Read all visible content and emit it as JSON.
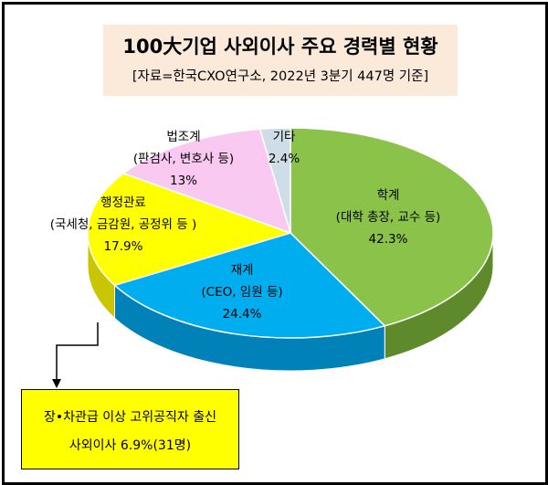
{
  "title": "100大기업 사외이사 주요 경력별 현황",
  "subtitle": "[자료=한국CXO연구소, 2022년 3분기 447명 기준]",
  "chart_data": {
    "type": "pie",
    "slices": [
      {
        "key": "academia",
        "lines": [
          "학계",
          "(대학 총장, 교수 등)",
          "42.3%"
        ],
        "value": 42.3,
        "color": "#8bc34a",
        "side": "#5e8a2c"
      },
      {
        "key": "business",
        "lines": [
          "재계",
          "(CEO, 임원 등)",
          "24.4%"
        ],
        "value": 24.4,
        "color": "#00aeef",
        "side": "#0082b8"
      },
      {
        "key": "administration",
        "lines": [
          "행정관료",
          "(국세청, 금감원, 공정위 등 )",
          "17.9%"
        ],
        "value": 17.9,
        "color": "#ffff00",
        "side": "#c9c600"
      },
      {
        "key": "legal",
        "lines": [
          "법조계",
          "(판검사, 변호사 등)",
          "13%"
        ],
        "value": 13,
        "color": "#f9c9f2",
        "side": "#c99fc3"
      },
      {
        "key": "other",
        "lines": [
          "기타",
          "2.4%"
        ],
        "value": 2.4,
        "color": "#cfdde8",
        "side": "#9fb2c2"
      }
    ]
  },
  "callout": {
    "line1": "장•차관급 이상 고위공직자 출신",
    "line2": "사외이사 6.9%(31명)"
  }
}
